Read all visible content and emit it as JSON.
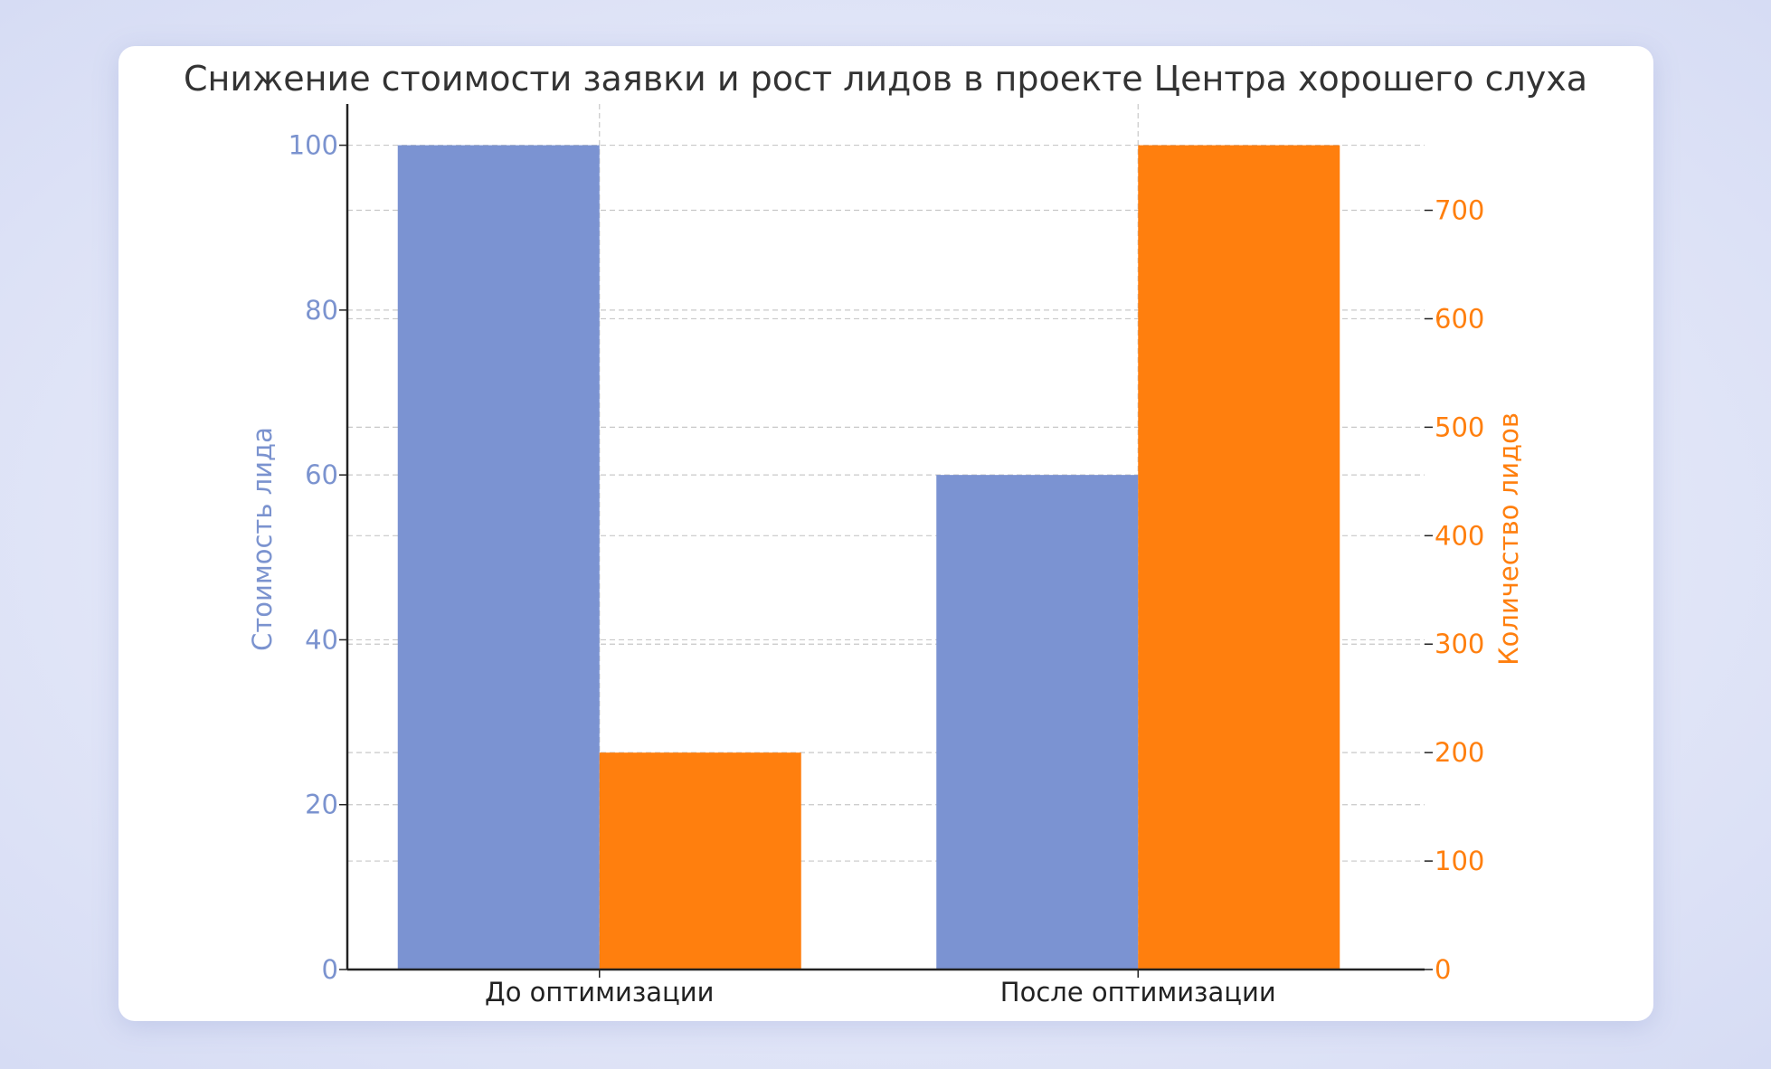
{
  "chart_data": {
    "type": "bar",
    "title": "Снижение стоимости заявки и рост лидов в проекте Центра хорошего слуха",
    "categories": [
      "До оптимизации",
      "После оптимизации"
    ],
    "series": [
      {
        "name": "Стоимость лида",
        "axis": "left",
        "color": "#7b93d2",
        "values": [
          100,
          60
        ]
      },
      {
        "name": "Количество лидов",
        "axis": "right",
        "color": "#ff7f0e",
        "values": [
          200,
          760
        ]
      }
    ],
    "y_left": {
      "label": "Стоимость лида",
      "range": [
        0,
        105
      ],
      "ticks": [
        0,
        20,
        40,
        60,
        80,
        100
      ]
    },
    "y_right": {
      "label": "Количество лидов",
      "range": [
        0,
        798
      ],
      "ticks": [
        0,
        100,
        200,
        300,
        400,
        500,
        600,
        700
      ]
    },
    "grid": true,
    "grid_style": "dashed"
  }
}
